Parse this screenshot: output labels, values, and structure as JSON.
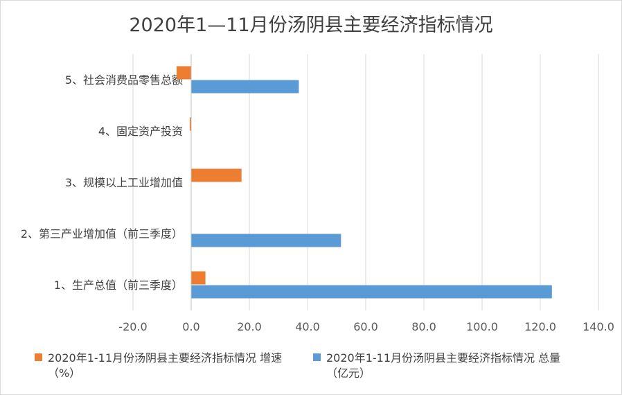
{
  "chart_data": {
    "type": "bar",
    "orientation": "horizontal",
    "title": "2020年1—11月份汤阴县主要经济指标情况",
    "categories": [
      "1、生产总值（前三季度）",
      "2、第三产业增加值（前三季度）",
      "3、规模以上工业增加值",
      "4、固定资产投资",
      "5、社会消费品零售总额"
    ],
    "series": [
      {
        "name": "2020年1-11月份汤阴县主要经济指标情况 增速（%）",
        "color": "#ED7D31",
        "values": [
          4.9,
          null,
          17.3,
          -0.5,
          -5.0
        ]
      },
      {
        "name": "2020年1-11月份汤阴县主要经济指标情况 总量（亿元）",
        "color": "#5B9BD5",
        "values": [
          124.0,
          51.5,
          null,
          null,
          37.0
        ]
      }
    ],
    "xlim": [
      -20,
      140
    ],
    "xticks": [
      "-20.0",
      "0.0",
      "20.0",
      "40.0",
      "60.0",
      "80.0",
      "100.0",
      "120.0",
      "140.0"
    ],
    "grid": true,
    "legend_position": "bottom"
  },
  "legend": {
    "growth_line1": "2020年1-11月份汤阴县主要经济指标情况 增速",
    "growth_line2": "（%）",
    "total_line1": "2020年1-11月份汤阴县主要经济指标情况 总量",
    "total_line2": "（亿元）"
  }
}
